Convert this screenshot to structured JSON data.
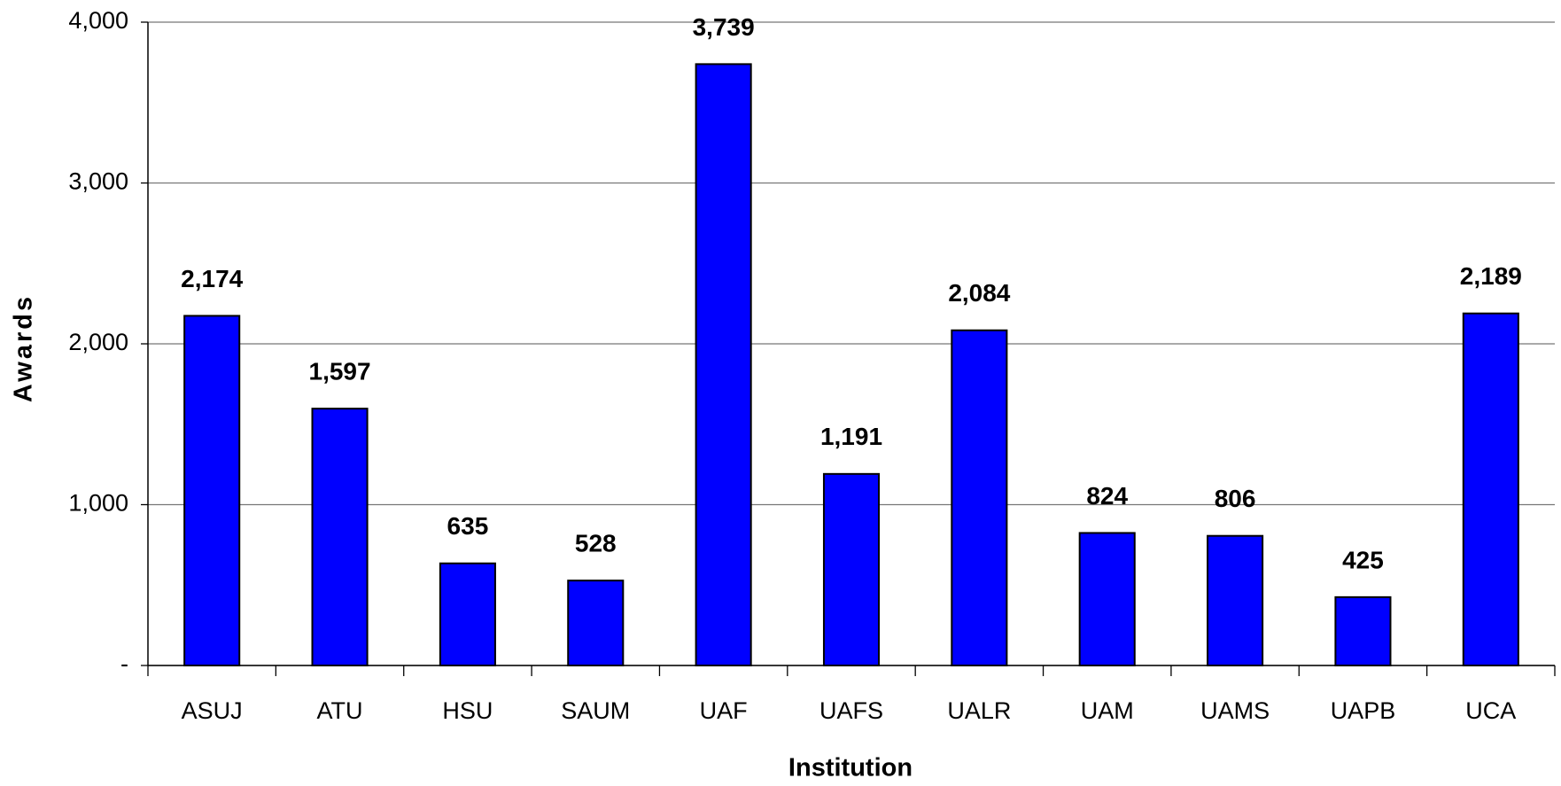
{
  "chart_data": {
    "type": "bar",
    "x_label": "Institution",
    "y_label": "Awards",
    "categories": [
      "ASUJ",
      "ATU",
      "HSU",
      "SAUM",
      "UAF",
      "UAFS",
      "UALR",
      "UAM",
      "UAMS",
      "UAPB",
      "UCA"
    ],
    "values": [
      2174,
      1597,
      635,
      528,
      3739,
      1191,
      2084,
      824,
      806,
      425,
      2189
    ],
    "value_labels": [
      "2,174",
      "1,597",
      "635",
      "528",
      "3,739",
      "1,191",
      "2,084",
      "824",
      "806",
      "425",
      "2,189"
    ],
    "color": "#0000ff",
    "ylim": [
      0,
      4000
    ],
    "yticks": [
      {
        "value": 0,
        "label": "-"
      },
      {
        "value": 1000,
        "label": "1,000"
      },
      {
        "value": 2000,
        "label": "2,000"
      },
      {
        "value": 3000,
        "label": "3,000"
      },
      {
        "value": 4000,
        "label": "4,000"
      }
    ],
    "grid": true
  }
}
